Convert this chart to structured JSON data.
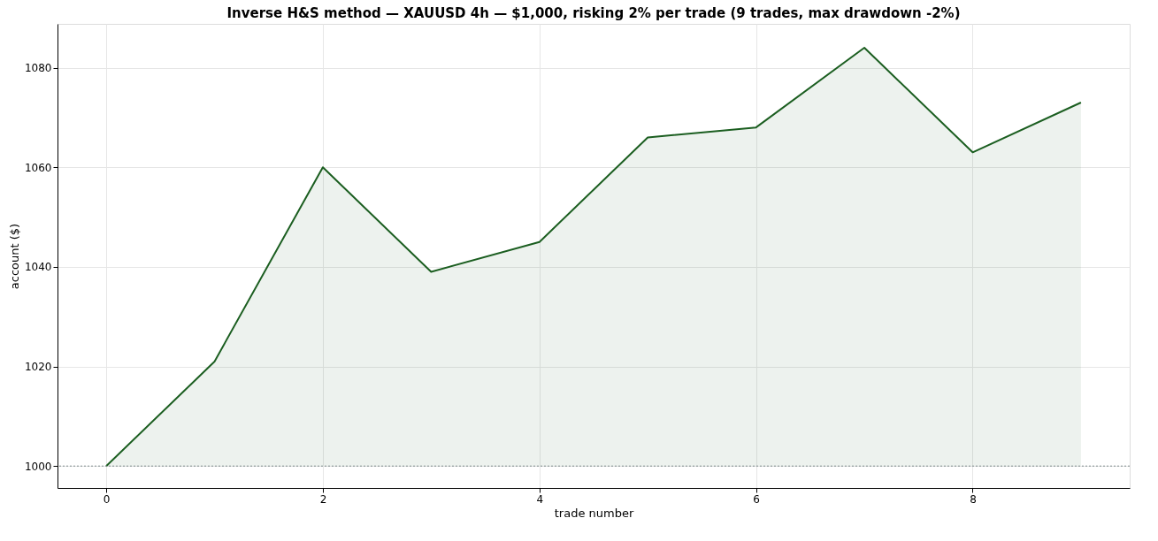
{
  "chart_data": {
    "type": "area",
    "title": "Inverse H&S method — XAUUSD 4h — $1,000, risking 2% per trade (9 trades, max drawdown -2%)",
    "xlabel": "trade number",
    "ylabel": "account ($)",
    "x": [
      0,
      1,
      2,
      3,
      4,
      5,
      6,
      7,
      8,
      9
    ],
    "series": [
      {
        "color": "#1b5e20",
        "values": [
          1000,
          1021,
          1060,
          1039,
          1045,
          1066,
          1068,
          1084,
          1063,
          1073
        ]
      }
    ],
    "xlim": [
      -0.45,
      9.45
    ],
    "xticks": [
      0,
      2,
      4,
      6,
      8
    ],
    "ylim": [
      995.6,
      1088.8
    ],
    "yticks": [
      1000,
      1020,
      1040,
      1060,
      1080
    ],
    "grid": true,
    "ref_lines": [
      {
        "axis": "y",
        "value": 1000,
        "color": "#7f8c8d",
        "line_style": "dotted"
      }
    ]
  }
}
